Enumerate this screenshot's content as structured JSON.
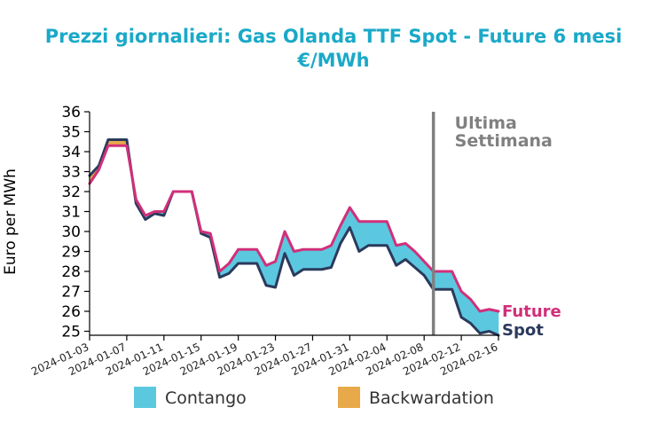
{
  "chart_data": {
    "type": "area",
    "title_line1": "Prezzi giornalieri: Gas Olanda TTF Spot - Future 6 mesi",
    "title_line2": "€/MWh",
    "ylabel": "Euro per MWh",
    "xlabel": "",
    "ylim": [
      24.8,
      36
    ],
    "yticks": [
      25,
      26,
      27,
      28,
      29,
      30,
      31,
      32,
      33,
      34,
      35,
      36
    ],
    "xlim": [
      "2024-01-03",
      "2024-02-16"
    ],
    "xticks": [
      "2024-01-03",
      "2024-01-07",
      "2024-01-11",
      "2024-01-15",
      "2024-01-19",
      "2024-01-23",
      "2024-01-27",
      "2024-01-31",
      "2024-02-04",
      "2024-02-08",
      "2024-02-12",
      "2024-02-16"
    ],
    "grid": false,
    "legend_position": "bottom",
    "annotation": {
      "text_line1": "Ultima",
      "text_line2": "Settimana",
      "x": "2024-02-09"
    },
    "dates": [
      "2024-01-03",
      "2024-01-04",
      "2024-01-05",
      "2024-01-06",
      "2024-01-07",
      "2024-01-08",
      "2024-01-09",
      "2024-01-10",
      "2024-01-11",
      "2024-01-12",
      "2024-01-13",
      "2024-01-14",
      "2024-01-15",
      "2024-01-16",
      "2024-01-17",
      "2024-01-18",
      "2024-01-19",
      "2024-01-20",
      "2024-01-21",
      "2024-01-22",
      "2024-01-23",
      "2024-01-24",
      "2024-01-25",
      "2024-01-26",
      "2024-01-27",
      "2024-01-28",
      "2024-01-29",
      "2024-01-30",
      "2024-01-31",
      "2024-02-01",
      "2024-02-02",
      "2024-02-03",
      "2024-02-04",
      "2024-02-05",
      "2024-02-06",
      "2024-02-07",
      "2024-02-08",
      "2024-02-09",
      "2024-02-10",
      "2024-02-11",
      "2024-02-12",
      "2024-02-13",
      "2024-02-14",
      "2024-02-15",
      "2024-02-16"
    ],
    "series": [
      {
        "name": "Spot",
        "color": "#2b3a5c",
        "values": [
          32.8,
          33.3,
          34.6,
          34.6,
          34.6,
          31.4,
          30.6,
          30.9,
          30.8,
          32.0,
          32.0,
          32.0,
          29.9,
          29.7,
          27.7,
          27.9,
          28.4,
          28.4,
          28.4,
          27.3,
          27.2,
          28.9,
          27.8,
          28.1,
          28.1,
          28.1,
          28.2,
          29.4,
          30.2,
          29.0,
          29.3,
          29.3,
          29.3,
          28.3,
          28.6,
          28.2,
          27.8,
          27.1,
          27.1,
          27.1,
          25.7,
          25.4,
          24.9,
          25.0,
          24.8
        ]
      },
      {
        "name": "Future",
        "color": "#d0307a",
        "values": [
          32.4,
          33.1,
          34.3,
          34.3,
          34.3,
          31.6,
          30.8,
          31.0,
          31.0,
          32.0,
          32.0,
          32.0,
          30.0,
          29.9,
          28.0,
          28.4,
          29.1,
          29.1,
          29.1,
          28.3,
          28.5,
          30.0,
          29.0,
          29.1,
          29.1,
          29.1,
          29.3,
          30.3,
          31.2,
          30.5,
          30.5,
          30.5,
          30.5,
          29.3,
          29.4,
          29.0,
          28.5,
          28.0,
          28.0,
          28.0,
          27.0,
          26.6,
          26.0,
          26.1,
          26.0
        ]
      }
    ],
    "fills": [
      {
        "name": "Contango",
        "color": "#5bc8e0"
      },
      {
        "name": "Backwardation",
        "color": "#e8a94a"
      }
    ]
  }
}
